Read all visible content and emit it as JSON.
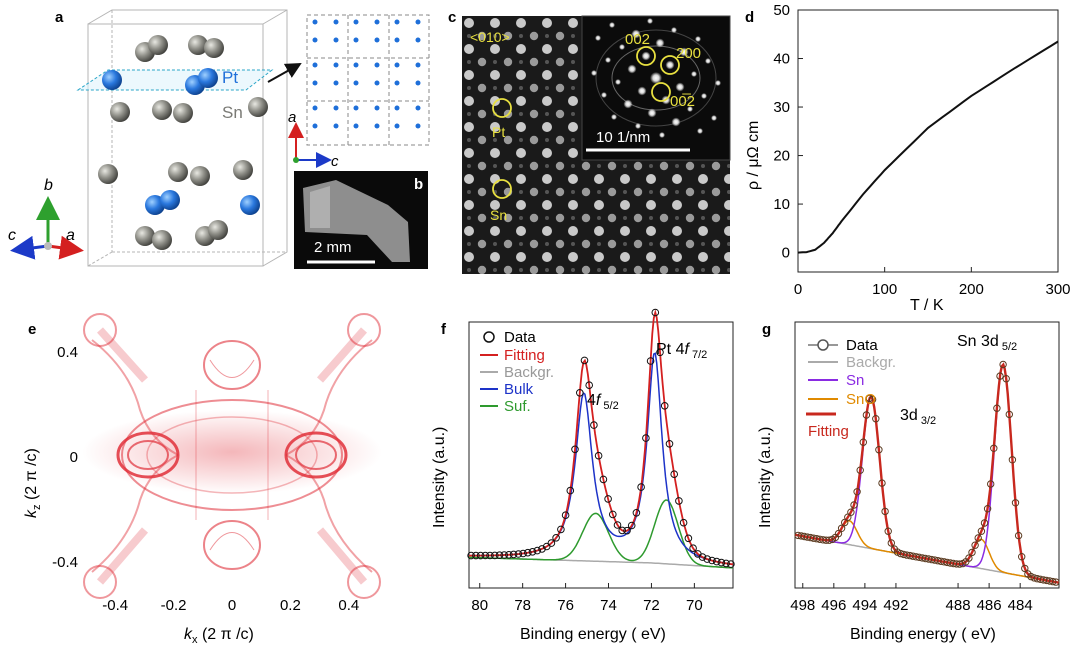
{
  "figure": {
    "panel_labels": [
      "a",
      "b",
      "c",
      "d",
      "e",
      "f",
      "g"
    ]
  },
  "panel_a": {
    "atom_labels": {
      "pt": "Pt",
      "sn": "Sn"
    },
    "axes": {
      "b": "b",
      "c": "c",
      "a": "a"
    },
    "inset_axes": {
      "a": "a",
      "c": "c"
    },
    "colors": {
      "pt": "#1e6fd9",
      "sn": "#8a8a85"
    }
  },
  "panel_b": {
    "scale_bar": "2 mm"
  },
  "panel_c": {
    "zone_axis": "<010>",
    "pt_label": "Pt",
    "sn_label": "Sn",
    "diffraction_spots": [
      "002",
      "200",
      "00̅2"
    ],
    "inset_scale_bar": "10 1/nm"
  },
  "panel_e": {
    "xlabel_var": "k",
    "xlabel_sub": "x",
    "xlabel_unit": " (2 π /c)",
    "ylabel_var": "k",
    "ylabel_sub": "z",
    "ylabel_unit": " (2 π /c)"
  },
  "chart_data": [
    {
      "panel": "d",
      "type": "line",
      "xlabel": "T / K",
      "ylabel": "ρ / μΩ cm",
      "xlim": [
        0,
        300
      ],
      "ylim": [
        -4,
        50
      ],
      "xticks": [
        "0",
        "100",
        "200",
        "300"
      ],
      "yticks": [
        "0",
        "10",
        "20",
        "30",
        "40",
        "50"
      ],
      "series": [
        {
          "name": "rho",
          "x": [
            0,
            10,
            20,
            30,
            40,
            50,
            75,
            100,
            150,
            200,
            250,
            300
          ],
          "y": [
            0,
            0.1,
            0.6,
            2,
            4,
            6.4,
            12,
            17,
            25.7,
            32.3,
            38,
            43.5
          ]
        }
      ]
    },
    {
      "panel": "f",
      "type": "line",
      "xlabel": "Binding energy ( eV)",
      "ylabel": "Intensity (a.u.)",
      "xlim": [
        80.5,
        68.2
      ],
      "xticks": [
        "80",
        "78",
        "76",
        "74",
        "72",
        "70"
      ],
      "legend": [
        "Data",
        "Fitting",
        "Backgr.",
        "Bulk",
        "Suf."
      ],
      "annotations": {
        "peak1_main": "Pt 4",
        "peak1_f": "f",
        "peak1_sub": " 7/2",
        "peak2_main": "4",
        "peak2_f": "f",
        "peak2_sub": " 5/2"
      },
      "peaks": [
        {
          "name": "Pt 4f7/2",
          "position_eV": 71.9
        },
        {
          "name": "Pt 4f5/2",
          "position_eV": 75.2
        }
      ],
      "colors": {
        "fitting": "#d42020",
        "backgr": "#aaaaaa",
        "bulk": "#1d33c8",
        "suf": "#2e9a2e"
      }
    },
    {
      "panel": "g",
      "type": "line",
      "xlabel": "Binding energy ( eV)",
      "ylabel": "Intensity (a.u.)",
      "xlim": [
        498.5,
        481.5
      ],
      "xticks": [
        "498",
        "496",
        "494",
        "492",
        "488",
        "486",
        "484"
      ],
      "legend": [
        "Data",
        "Backgr.",
        "Sn",
        "SnO",
        "Fitting"
      ],
      "annotations": {
        "peak1": "Sn 3d",
        "peak1_sub": " 5/2",
        "peak2": "3d",
        "peak2_sub": " 3/2"
      },
      "peaks": [
        {
          "name": "Sn 3d5/2",
          "position_eV": 485.1
        },
        {
          "name": "Sn 3d3/2",
          "position_eV": 493.6
        }
      ],
      "colors": {
        "fitting": "#c8281e",
        "backgr": "#aaaaaa",
        "sn": "#8a2be2",
        "sno": "#e08a00"
      }
    },
    {
      "panel": "e",
      "type": "heatmap",
      "xlim": [
        -0.5,
        0.5
      ],
      "ylim": [
        -0.5,
        0.5
      ],
      "xticks": [
        "-0.4",
        "-0.2",
        "0",
        "0.2",
        "0.4"
      ],
      "yticks": [
        "0.4",
        "0",
        "-0.4"
      ],
      "color": "#e0303a"
    }
  ]
}
